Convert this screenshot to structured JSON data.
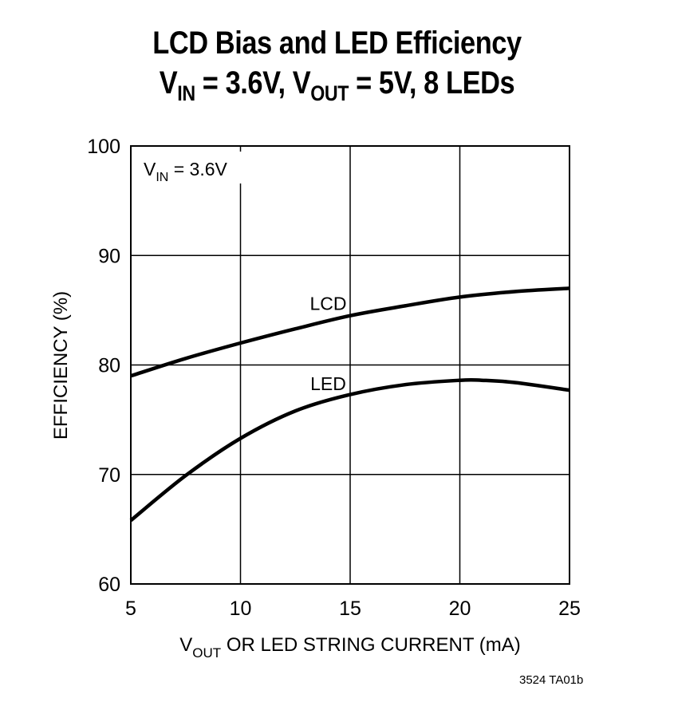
{
  "title": {
    "line1": "LCD Bias and LED Efficiency",
    "line2": {
      "v1": "V",
      "sub1": "IN",
      "mid": " = 3.6V, V",
      "sub2": "OUT",
      "end": " = 5V, 8 LEDs"
    }
  },
  "footnote": "3524 TA01b",
  "chart_data": {
    "type": "line",
    "xlim": [
      5,
      25
    ],
    "ylim": [
      60,
      100
    ],
    "xticks": [
      "5",
      "10",
      "15",
      "20",
      "25"
    ],
    "yticks": [
      "60",
      "70",
      "80",
      "90",
      "100"
    ],
    "xlabel": {
      "v": "V",
      "sub": "OUT",
      "rest": " OR LED STRING CURRENT (mA)"
    },
    "ylabel": "EFFICIENCY (%)",
    "grid": true,
    "annotation": {
      "v": "V",
      "sub": "IN",
      "rest": " = 3.6V"
    },
    "series": [
      {
        "name": "LCD",
        "x": [
          5,
          7.5,
          10,
          12.5,
          15,
          17.5,
          20,
          22.5,
          25
        ],
        "y": [
          79,
          80.6,
          82,
          83.3,
          84.5,
          85.4,
          86.2,
          86.7,
          87
        ]
      },
      {
        "name": "LED",
        "x": [
          5,
          7.5,
          10,
          12.5,
          15,
          17.5,
          20,
          21,
          22.5,
          25
        ],
        "y": [
          65.8,
          69.9,
          73.3,
          75.8,
          77.3,
          78.2,
          78.6,
          78.6,
          78.4,
          77.7
        ]
      }
    ]
  }
}
